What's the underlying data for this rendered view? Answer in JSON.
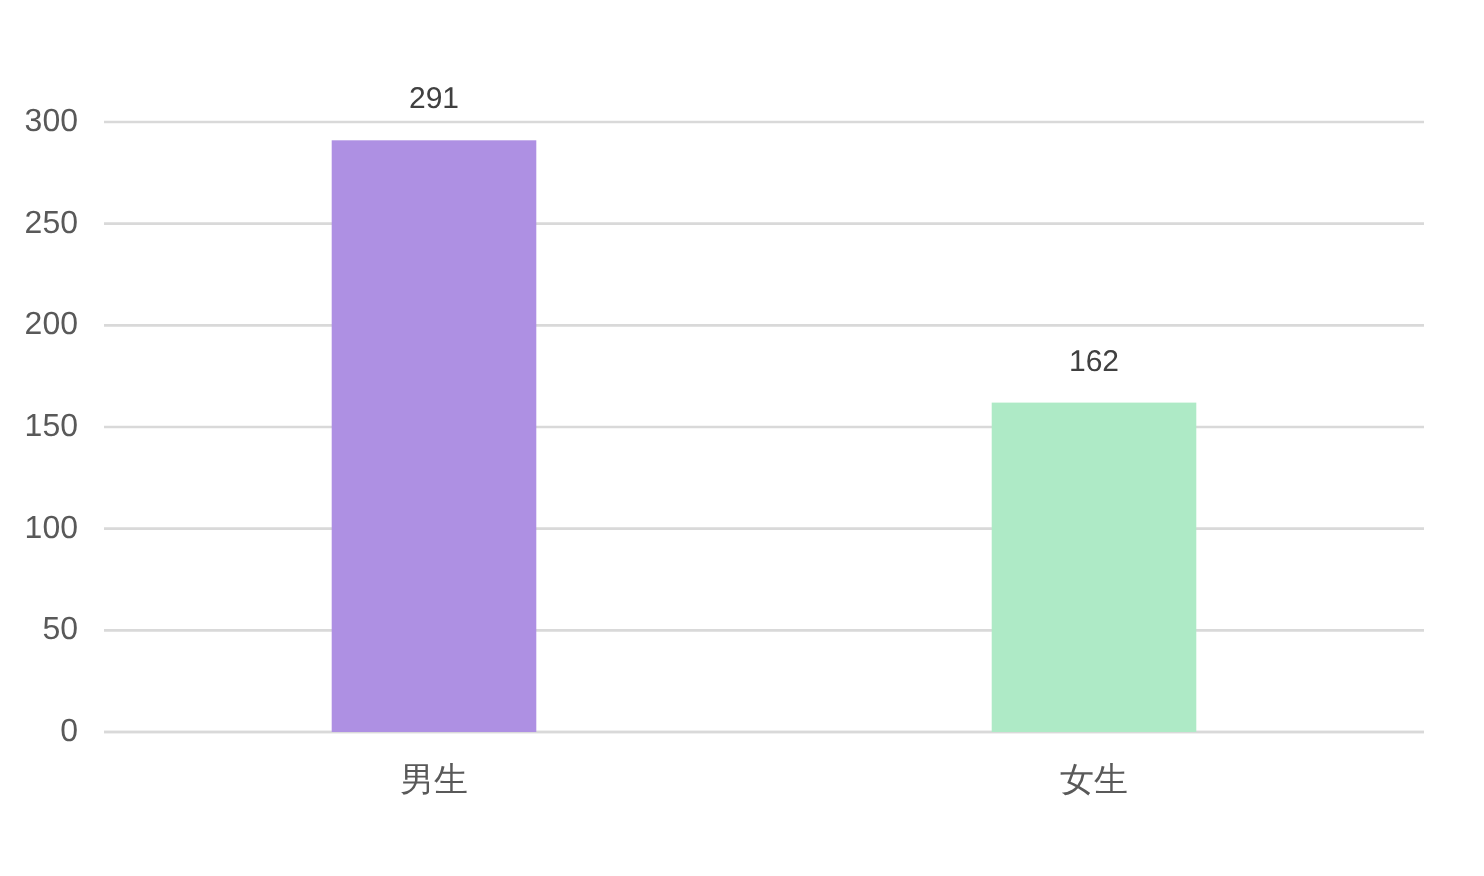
{
  "chart_data": {
    "type": "bar",
    "categories": [
      "男生",
      "女生"
    ],
    "values": [
      291,
      162
    ],
    "colors": [
      "#ae90e3",
      "#aeeac6"
    ],
    "ylim": [
      0,
      300
    ],
    "yticks": [
      0,
      50,
      100,
      150,
      200,
      250,
      300
    ],
    "grid": "y",
    "data_labels": true
  }
}
